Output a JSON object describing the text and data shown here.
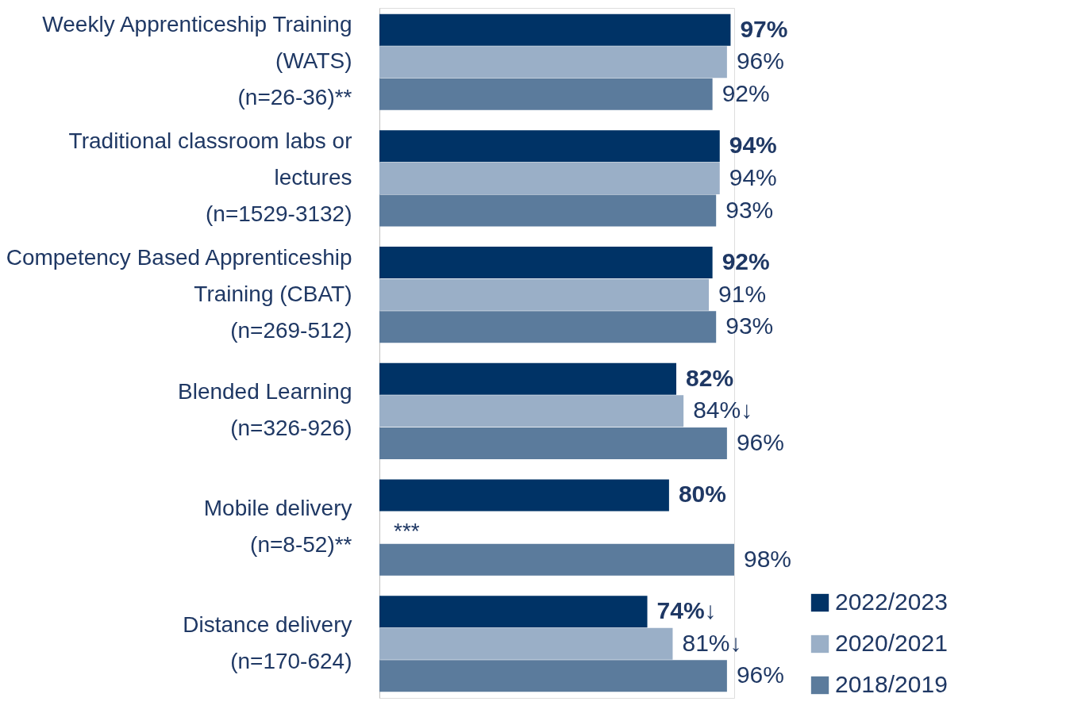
{
  "chart_data": {
    "type": "bar",
    "orientation": "horizontal",
    "categories": [
      "Weekly Apprenticeship Training\n(WATS)\n(n=26-36)**",
      "Traditional classroom labs or\nlectures\n(n=1529-3132)",
      "Competency Based Apprenticeship\nTraining (CBAT)\n(n=269-512)",
      "Blended Learning\n(n=326-926)",
      "Mobile delivery\n(n=8-52)**",
      "Distance delivery\n(n=170-624)"
    ],
    "series": [
      {
        "name": "2022/2023",
        "color": "#003366",
        "values": [
          97,
          94,
          92,
          82,
          80,
          74
        ],
        "value_labels": [
          "97%",
          "94%",
          "92%",
          "82%",
          "80%",
          "74%↓"
        ]
      },
      {
        "name": "2020/2021",
        "color": "#9aafc7",
        "values": [
          96,
          94,
          91,
          84,
          null,
          81
        ],
        "value_labels": [
          "96%",
          "94%",
          "91%",
          "84%↓",
          null,
          "81%↓"
        ]
      },
      {
        "name": "2018/2019",
        "color": "#5b7b9c",
        "values": [
          92,
          93,
          93,
          96,
          98,
          96
        ],
        "value_labels": [
          "92%",
          "93%",
          "93%",
          "96%",
          "98%",
          "96%"
        ]
      }
    ],
    "annotations": [
      "***"
    ],
    "legend": "bottom right",
    "grid": false
  }
}
